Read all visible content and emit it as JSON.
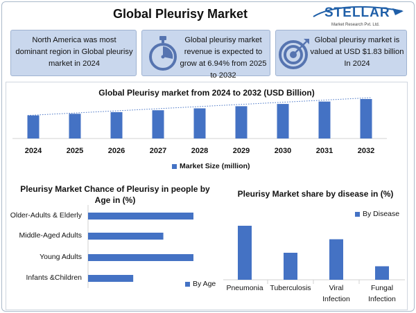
{
  "header": {
    "title": "Global Pleurisy Market",
    "logo_word": "STELLAR",
    "logo_tagline": "Market Research Pvt. Ltd."
  },
  "cards": [
    {
      "text": "North America was most dominant region in Global pleurisy market in 2024",
      "icon": "none"
    },
    {
      "text": "Global pleurisy market revenue is expected to grow at 6.94% from 2025 to 2032",
      "icon": "stopwatch-icon"
    },
    {
      "text": "Global pleurisy market is valued at USD $1.83 billion In 2024",
      "icon": "target-icon"
    }
  ],
  "colors": {
    "bar": "#4472c4",
    "card_bg": "#c9d7ed",
    "logo": "#1f5fa8"
  },
  "chart_data": [
    {
      "type": "bar",
      "title": "Global Pleurisy market from 2024 to 2032 (USD Billion)",
      "categories": [
        "2024",
        "2025",
        "2026",
        "2027",
        "2028",
        "2029",
        "2030",
        "2031",
        "2032"
      ],
      "series": [
        {
          "name": "Market Size (million)",
          "values": [
            1.83,
            1.96,
            2.09,
            2.24,
            2.39,
            2.56,
            2.74,
            2.93,
            3.13
          ]
        }
      ],
      "trendline": "dotted linear",
      "ylim": [
        0,
        3.13
      ],
      "legend": "bottom"
    },
    {
      "type": "bar",
      "orientation": "horizontal",
      "title": "Pleurisy Market Chance of Pleurisy in people by Age in (%)",
      "categories": [
        "Older-Adults & Elderly",
        "Middle-Aged Adults",
        "Young Adults",
        "Infants &Children"
      ],
      "series": [
        {
          "name": "By Age",
          "values": [
            35,
            25,
            35,
            15
          ]
        }
      ],
      "xlim": [
        0,
        35
      ],
      "legend": "bottom-right"
    },
    {
      "type": "bar",
      "title": "Pleurisy Market share by disease in (%)",
      "categories": [
        "Pneumonia",
        "Tuberculosis",
        "Viral Infection",
        "Fungal Infection"
      ],
      "category_lines": [
        [
          "Pneumonia"
        ],
        [
          "Tuberculosis"
        ],
        [
          "Viral",
          "Infection"
        ],
        [
          "Fungal",
          "Infection"
        ]
      ],
      "series": [
        {
          "name": "By Disease",
          "values": [
            40,
            20,
            30,
            10
          ]
        }
      ],
      "ylim": [
        0,
        40
      ],
      "legend": "top-right"
    }
  ]
}
